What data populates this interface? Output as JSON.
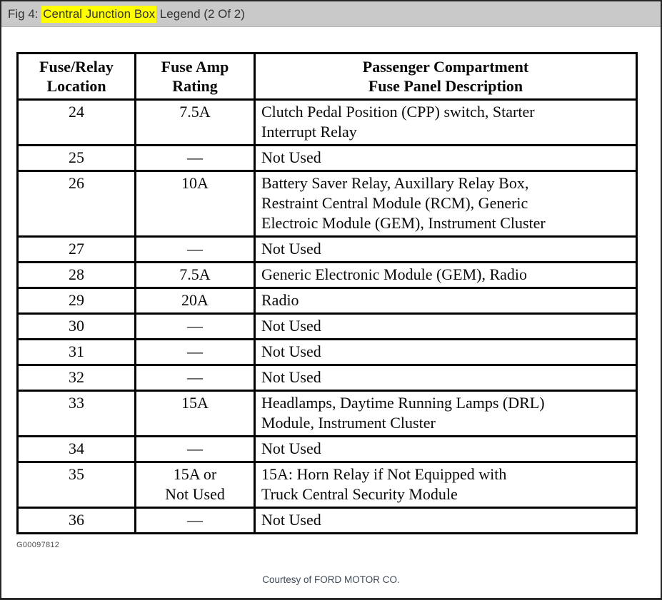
{
  "titlebar": {
    "prefix": "Fig 4: ",
    "highlight": "Central Junction Box",
    "suffix": " Legend (2 Of 2)"
  },
  "table": {
    "headers": [
      "Fuse/Relay\nLocation",
      "Fuse Amp\nRating",
      "Passenger Compartment\nFuse Panel Description"
    ],
    "rows": [
      {
        "location": "24",
        "rating": "7.5A",
        "description": "Clutch Pedal Position (CPP) switch, Starter\nInterrupt Relay"
      },
      {
        "location": "25",
        "rating": "—",
        "description": "Not Used"
      },
      {
        "location": "26",
        "rating": "10A",
        "description": "Battery Saver Relay, Auxillary Relay Box,\nRestraint Central Module (RCM), Generic\nElectroic Module (GEM), Instrument Cluster"
      },
      {
        "location": "27",
        "rating": "—",
        "description": "Not Used"
      },
      {
        "location": "28",
        "rating": "7.5A",
        "description": "Generic Electronic Module (GEM), Radio"
      },
      {
        "location": "29",
        "rating": "20A",
        "description": "Radio"
      },
      {
        "location": "30",
        "rating": "—",
        "description": "Not Used"
      },
      {
        "location": "31",
        "rating": "—",
        "description": "Not Used"
      },
      {
        "location": "32",
        "rating": "—",
        "description": "Not Used"
      },
      {
        "location": "33",
        "rating": "15A",
        "description": "Headlamps, Daytime Running Lamps (DRL)\nModule, Instrument Cluster"
      },
      {
        "location": "34",
        "rating": "—",
        "description": "Not Used"
      },
      {
        "location": "35",
        "rating": "15A or\nNot Used",
        "description": "15A: Horn Relay if Not Equipped with\nTruck Central Security Module"
      },
      {
        "location": "36",
        "rating": "—",
        "description": "Not Used"
      }
    ]
  },
  "footer": {
    "figure_code": "G00097812",
    "courtesy": "Courtesy of FORD MOTOR CO."
  },
  "colors": {
    "titlebar_bg": "#c9c9c9",
    "highlight": "#ffff00",
    "table_border": "#000000",
    "courtesy_text": "#3c4a57"
  }
}
